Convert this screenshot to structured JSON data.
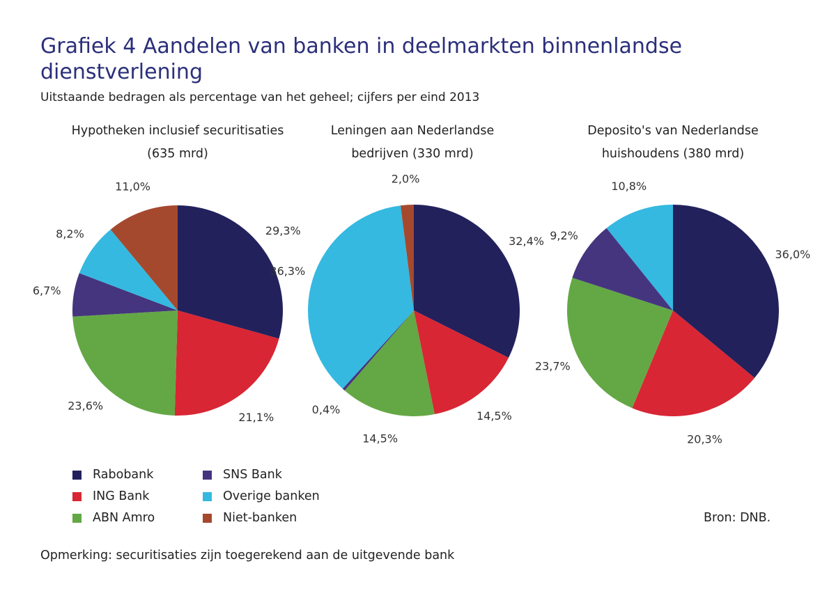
{
  "title": "Grafiek 4 Aandelen van banken in deelmarkten binnenlandse dienstverlening",
  "subtitle": "Uitstaande bedragen als percentage van het geheel; cijfers per eind 2013",
  "chart_data": [
    {
      "type": "pie",
      "title_line1": "Hypotheken inclusief securitisaties",
      "title_line2": "(635 mrd)",
      "labels": [
        "Rabobank",
        "ING Bank",
        "ABN Amro",
        "SNS Bank",
        "Overige banken",
        "Niet-banken"
      ],
      "values": [
        29.3,
        21.1,
        23.6,
        6.7,
        8.2,
        11.0
      ],
      "value_labels": [
        "29,3%",
        "21,1%",
        "23,6%",
        "6,7%",
        "8,2%",
        "11,0%"
      ]
    },
    {
      "type": "pie",
      "title_line1": "Leningen aan Nederlandse",
      "title_line2": "bedrijven (330 mrd)",
      "labels": [
        "Rabobank",
        "ING Bank",
        "ABN Amro",
        "SNS Bank",
        "Overige banken",
        "Niet-banken"
      ],
      "values": [
        32.4,
        14.5,
        14.5,
        0.4,
        36.3,
        2.0
      ],
      "value_labels": [
        "32,4%",
        "14,5%",
        "14,5%",
        "0,4%",
        "36,3%",
        "2,0%"
      ]
    },
    {
      "type": "pie",
      "title_line1": "Deposito's van Nederlandse",
      "title_line2": "huishoudens (380 mrd)",
      "labels": [
        "Rabobank",
        "ING Bank",
        "ABN Amro",
        "SNS Bank",
        "Overige banken"
      ],
      "values": [
        36.0,
        20.3,
        23.7,
        9.2,
        10.8
      ],
      "value_labels": [
        "36,0%",
        "20,3%",
        "23,7%",
        "9,2%",
        "10,8%"
      ]
    }
  ],
  "legend": [
    {
      "label": "Rabobank",
      "color": "#23215c"
    },
    {
      "label": "ING Bank",
      "color": "#d82634"
    },
    {
      "label": "ABN Amro",
      "color": "#63a845"
    },
    {
      "label": "SNS Bank",
      "color": "#45357e"
    },
    {
      "label": "Overige banken",
      "color": "#35b9e0"
    },
    {
      "label": "Niet-banken",
      "color": "#a5492e"
    }
  ],
  "source": "Bron: DNB.",
  "note": "Opmerking: securitisaties zijn toegerekend aan de uitgevende bank"
}
